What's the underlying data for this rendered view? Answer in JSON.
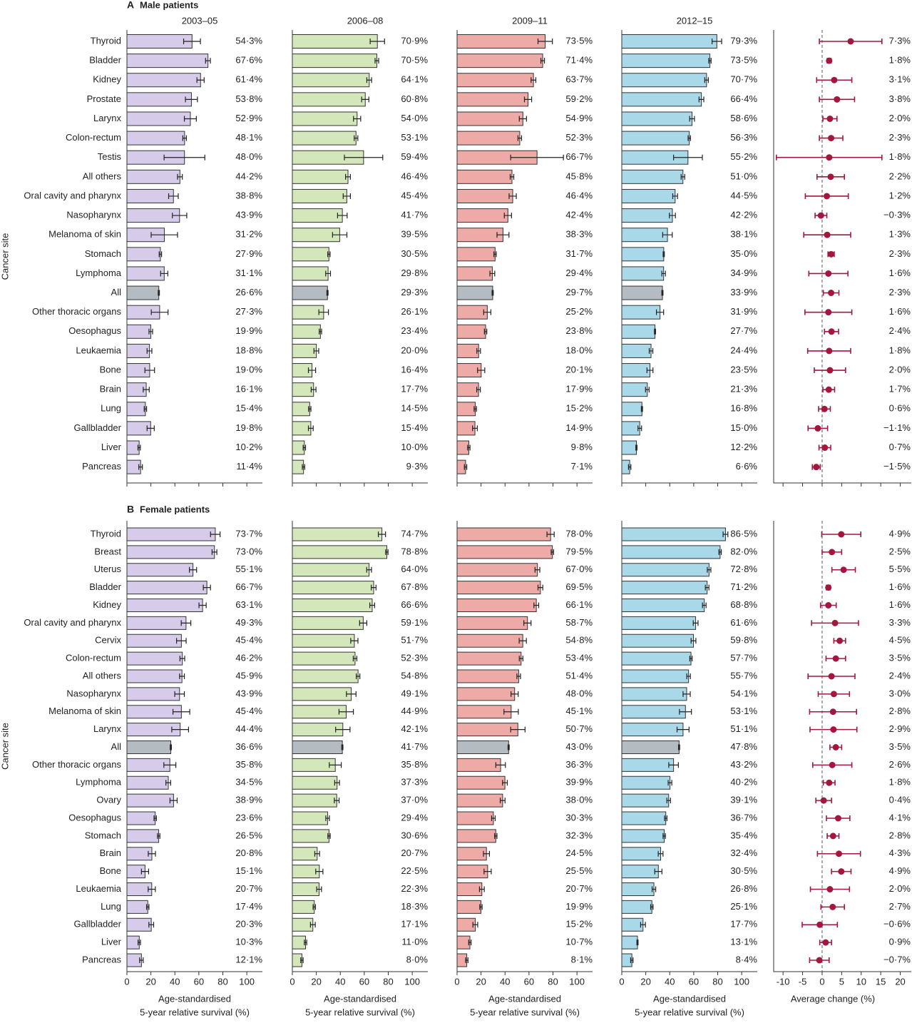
{
  "chart_data": {
    "type": "bar",
    "periods": [
      "2003–05",
      "2006–08",
      "2009–11",
      "2012–15"
    ],
    "bar_colors": [
      "#d6cbe8",
      "#d3e7bb",
      "#eeaaa6",
      "#a9d8e8"
    ],
    "highlight_color": "#b4bcc2",
    "forest_color": "#a3173f",
    "bar_xlim": [
      0,
      113
    ],
    "bar_xticks": [
      0,
      20,
      40,
      60,
      80,
      100
    ],
    "bar_x_label": [
      "Age-standardised",
      "5-year relative survival (%)"
    ],
    "forest_xlim": [
      -12.4,
      23
    ],
    "forest_xticks": [
      -10,
      -5,
      0,
      5,
      10,
      15,
      20
    ],
    "forest_x_label": "Average change (%)",
    "y_label": "Cancer site",
    "panels": [
      {
        "label": "A",
        "title": "Male patients",
        "highlight_index": 13,
        "categories": [
          "Thyroid",
          "Bladder",
          "Kidney",
          "Prostate",
          "Larynx",
          "Colon-rectum",
          "Testis",
          "All others",
          "Oral cavity and pharynx",
          "Nasopharynx",
          "Melanoma of skin",
          "Stomach",
          "Lymphoma",
          "All",
          "Other thoracic organs",
          "Oesophagus",
          "Leukaemia",
          "Bone",
          "Brain",
          "Lung",
          "Gallbladder",
          "Liver",
          "Pancreas"
        ],
        "bars": [
          {
            "values": [
              54.3,
              67.6,
              61.4,
              53.8,
              52.9,
              48.1,
              48.0,
              44.2,
              38.8,
              43.9,
              31.2,
              27.9,
              31.1,
              26.6,
              27.3,
              19.9,
              18.8,
              19.0,
              16.1,
              15.4,
              19.8,
              10.2,
              11.4
            ],
            "errors": [
              7,
              2,
              3,
              5,
              5,
              1.5,
              17,
              2,
              4,
              6,
              11,
              1,
              3,
              0.5,
              7,
              1.5,
              2,
              4,
              2.5,
              1,
              3,
              1,
              1.5
            ],
            "value_labels": [
              "54·3%",
              "67·6%",
              "61·4%",
              "53·8%",
              "52·9%",
              "48·1%",
              "48·0%",
              "44·2%",
              "38·8%",
              "43·9%",
              "31·2%",
              "27·9%",
              "31·1%",
              "26·6%",
              "27·3%",
              "19·9%",
              "18·8%",
              "19·0%",
              "16·1%",
              "15·4%",
              "19·8%",
              "10·2%",
              "11·4%"
            ]
          },
          {
            "values": [
              70.9,
              70.5,
              64.1,
              60.8,
              54.0,
              53.1,
              59.4,
              46.4,
              45.4,
              41.7,
              39.5,
              30.5,
              29.8,
              29.3,
              26.1,
              23.4,
              20.0,
              16.4,
              17.7,
              14.5,
              15.4,
              10.0,
              9.3
            ],
            "errors": [
              6,
              1.5,
              2,
              3,
              3,
              1.5,
              16,
              2,
              3,
              4,
              6,
              1,
              2,
              0.5,
              4,
              1,
              2,
              3,
              2,
              1,
              2,
              1,
              1
            ],
            "value_labels": [
              "70·9%",
              "70·5%",
              "64·1%",
              "60·8%",
              "54·0%",
              "53·1%",
              "59·4%",
              "46·4%",
              "45·4%",
              "41·7%",
              "39·5%",
              "30·5%",
              "29·8%",
              "29·3%",
              "26·1%",
              "23·4%",
              "20·0%",
              "16·4%",
              "17·7%",
              "14·5%",
              "15·4%",
              "10·0%",
              "9·3%"
            ]
          },
          {
            "values": [
              73.5,
              71.4,
              63.7,
              59.2,
              54.9,
              52.3,
              66.7,
              45.8,
              46.4,
              42.4,
              38.3,
              31.7,
              29.4,
              29.7,
              25.2,
              23.8,
              18.0,
              20.1,
              17.9,
              15.2,
              14.9,
              9.8,
              7.1
            ],
            "errors": [
              6,
              1.5,
              2,
              3,
              3,
              1.5,
              22,
              1.5,
              3,
              3,
              5,
              1,
              2,
              0.5,
              3,
              1,
              1.5,
              3,
              1.5,
              1,
              2,
              1,
              1
            ],
            "value_labels": [
              "73·5%",
              "71·4%",
              "63·7%",
              "59·2%",
              "54·9%",
              "52·3%",
              "66·7%",
              "45·8%",
              "46·4%",
              "42·4%",
              "38·3%",
              "31·7%",
              "29·4%",
              "29·7%",
              "25·2%",
              "23·8%",
              "18·0%",
              "20·1%",
              "17·9%",
              "15·2%",
              "14·9%",
              "9·8%",
              "7·1%"
            ]
          },
          {
            "values": [
              79.3,
              73.5,
              70.7,
              66.4,
              58.6,
              56.3,
              55.2,
              51.0,
              44.5,
              42.2,
              38.1,
              35.0,
              34.9,
              33.9,
              31.9,
              27.7,
              24.4,
              23.5,
              21.3,
              16.8,
              15.0,
              12.2,
              6.6
            ],
            "errors": [
              4,
              1,
              1.5,
              2,
              2,
              1,
              12,
              1.5,
              2,
              2.5,
              4,
              0.5,
              1.5,
              0.5,
              3,
              0.5,
              1.5,
              2.5,
              1.5,
              0.5,
              1.5,
              0.5,
              1
            ],
            "value_labels": [
              "79·3%",
              "73·5%",
              "70·7%",
              "66·4%",
              "58·6%",
              "56·3%",
              "55·2%",
              "51·0%",
              "44·5%",
              "42·2%",
              "38·1%",
              "35·0%",
              "34·9%",
              "33·9%",
              "31·9%",
              "27·7%",
              "24·4%",
              "23·5%",
              "21·3%",
              "16·8%",
              "15·0%",
              "12·2%",
              "6·6%"
            ]
          }
        ],
        "change": {
          "values": [
            7.3,
            1.8,
            3.1,
            3.8,
            2.0,
            2.3,
            1.8,
            2.2,
            1.2,
            -0.3,
            1.3,
            2.3,
            1.6,
            2.3,
            1.6,
            2.4,
            1.8,
            2.0,
            1.7,
            0.6,
            -1.1,
            0.7,
            -1.5
          ],
          "errors": [
            8,
            0.5,
            4.5,
            4.5,
            1.8,
            3,
            13.5,
            3.5,
            5.5,
            1.5,
            6,
            0.8,
            5,
            2,
            6,
            1.8,
            5.5,
            4,
            1.5,
            1.5,
            2.5,
            1.5,
            1
          ],
          "value_labels": [
            "7·3%",
            "1·8%",
            "3·1%",
            "3·8%",
            "2·0%",
            "2·3%",
            "1·8%",
            "2·2%",
            "1·2%",
            "−0·3%",
            "1·3%",
            "2·3%",
            "1·6%",
            "2·3%",
            "1·6%",
            "2·4%",
            "1·8%",
            "2·0%",
            "1·7%",
            "0·6%",
            "−1·1%",
            "0·7%",
            "−1·5%"
          ]
        }
      },
      {
        "label": "B",
        "title": "Female patients",
        "highlight_index": 12,
        "categories": [
          "Thyroid",
          "Breast",
          "Uterus",
          "Bladder",
          "Kidney",
          "Oral cavity and pharynx",
          "Cervix",
          "Colon-rectum",
          "All others",
          "Nasopharynx",
          "Melanoma of skin",
          "Larynx",
          "All",
          "Other thoracic organs",
          "Lymphoma",
          "Ovary",
          "Oesophagus",
          "Stomach",
          "Brain",
          "Bone",
          "Leukaemia",
          "Lung",
          "Gallbladder",
          "Liver",
          "Pancreas"
        ],
        "bars": [
          {
            "values": [
              73.7,
              73.0,
              55.1,
              66.7,
              63.1,
              49.3,
              45.4,
              46.2,
              45.9,
              43.9,
              45.4,
              44.4,
              36.6,
              35.8,
              34.5,
              38.9,
              23.6,
              26.5,
              20.8,
              15.1,
              20.7,
              17.4,
              20.3,
              10.3,
              12.1
            ],
            "errors": [
              4,
              2,
              3,
              3,
              3,
              4,
              4,
              2,
              2,
              4,
              7,
              7,
              0.5,
              5,
              2,
              3,
              1,
              1,
              3,
              3,
              3,
              1,
              2,
              1,
              1.5
            ],
            "value_labels": [
              "73·7%",
              "73·0%",
              "55·1%",
              "66·7%",
              "63·1%",
              "49·3%",
              "45·4%",
              "46·2%",
              "45·9%",
              "43·9%",
              "45·4%",
              "44·4%",
              "36·6%",
              "35·8%",
              "34·5%",
              "38·9%",
              "23·6%",
              "26·5%",
              "20·8%",
              "15·1%",
              "20·7%",
              "17·4%",
              "20·3%",
              "10·3%",
              "12·1%"
            ]
          },
          {
            "values": [
              74.7,
              78.8,
              64.0,
              67.8,
              66.6,
              59.1,
              51.7,
              52.3,
              54.8,
              49.1,
              44.9,
              42.1,
              41.7,
              35.8,
              37.3,
              37.0,
              29.4,
              30.6,
              20.7,
              22.5,
              22.3,
              18.3,
              17.1,
              11.0,
              8.0
            ],
            "errors": [
              3,
              1,
              2,
              2,
              2,
              3,
              3,
              1.5,
              1.5,
              4,
              6,
              6,
              0.5,
              5,
              2,
              2,
              1.5,
              1,
              2,
              3,
              2,
              1,
              2,
              1,
              1
            ],
            "value_labels": [
              "74·7%",
              "78·8%",
              "64·0%",
              "67·8%",
              "66·6%",
              "59·1%",
              "51·7%",
              "52·3%",
              "54·8%",
              "49·1%",
              "44·9%",
              "42·1%",
              "41·7%",
              "35·8%",
              "37·3%",
              "37·0%",
              "29·4%",
              "30·6%",
              "20·7%",
              "22·5%",
              "22·3%",
              "18·3%",
              "17·1%",
              "11·0%",
              "8·0%"
            ]
          },
          {
            "values": [
              78.0,
              79.5,
              67.0,
              69.5,
              66.1,
              58.7,
              54.8,
              53.4,
              51.4,
              48.0,
              45.1,
              50.7,
              43.0,
              36.3,
              39.9,
              38.0,
              30.3,
              32.3,
              24.5,
              25.5,
              20.7,
              19.9,
              15.2,
              10.7,
              8.1
            ],
            "errors": [
              3,
              1,
              2,
              2,
              2,
              3,
              3,
              1.5,
              1.5,
              3,
              6,
              6,
              0.5,
              4,
              2,
              2,
              1.5,
              1,
              2.5,
              3,
              2,
              1,
              2,
              1,
              1
            ],
            "value_labels": [
              "78·0%",
              "79·5%",
              "67·0%",
              "69·5%",
              "66·1%",
              "58·7%",
              "54·8%",
              "53·4%",
              "51·4%",
              "48·0%",
              "45·1%",
              "50·7%",
              "43·0%",
              "36·3%",
              "39·9%",
              "38·0%",
              "30·3%",
              "32·3%",
              "24·5%",
              "25·5%",
              "20·7%",
              "19·9%",
              "15·2%",
              "10·7%",
              "8·1%"
            ]
          },
          {
            "values": [
              86.5,
              82.0,
              72.8,
              71.2,
              68.8,
              61.6,
              59.8,
              57.7,
              55.7,
              54.1,
              53.1,
              51.1,
              47.8,
              43.2,
              40.2,
              39.1,
              36.7,
              35.4,
              32.4,
              30.5,
              26.8,
              25.1,
              17.7,
              13.1,
              8.4
            ],
            "errors": [
              2,
              1,
              1.5,
              1.5,
              1.5,
              2,
              2,
              1,
              1.5,
              3,
              5,
              5,
              0.5,
              4,
              1.5,
              1.5,
              1,
              1,
              2,
              3,
              1.5,
              1,
              2,
              0.5,
              1
            ],
            "value_labels": [
              "86·5%",
              "82·0%",
              "72·8%",
              "71·2%",
              "68·8%",
              "61·6%",
              "59·8%",
              "57·7%",
              "55·7%",
              "54·1%",
              "53·1%",
              "51·1%",
              "47·8%",
              "43·2%",
              "40·2%",
              "39·1%",
              "36·7%",
              "35·4%",
              "32·4%",
              "30·5%",
              "26·8%",
              "25·1%",
              "17·7%",
              "13·1%",
              "8·4%"
            ]
          }
        ],
        "change": {
          "values": [
            4.9,
            2.5,
            5.5,
            1.6,
            1.6,
            3.3,
            4.5,
            3.5,
            2.4,
            3.0,
            2.8,
            2.9,
            3.5,
            2.6,
            1.8,
            0.4,
            4.1,
            2.8,
            4.3,
            4.9,
            2.0,
            2.7,
            -0.6,
            0.9,
            -0.7
          ],
          "errors": [
            5,
            2.5,
            3,
            0.5,
            2,
            6,
            1.5,
            2.5,
            6,
            4,
            6,
            6,
            1.5,
            5,
            1.5,
            2,
            3,
            1.5,
            5.5,
            2.5,
            5,
            3,
            4.5,
            1.5,
            2.5
          ],
          "value_labels": [
            "4·9%",
            "2·5%",
            "5·5%",
            "1·6%",
            "1·6%",
            "3·3%",
            "4·5%",
            "3·5%",
            "2·4%",
            "3·0%",
            "2·8%",
            "2·9%",
            "3·5%",
            "2·6%",
            "1·8%",
            "0·4%",
            "4·1%",
            "2·8%",
            "4·3%",
            "4·9%",
            "2·0%",
            "2·7%",
            "−0·6%",
            "0·9%",
            "−0·7%"
          ]
        }
      }
    ]
  }
}
